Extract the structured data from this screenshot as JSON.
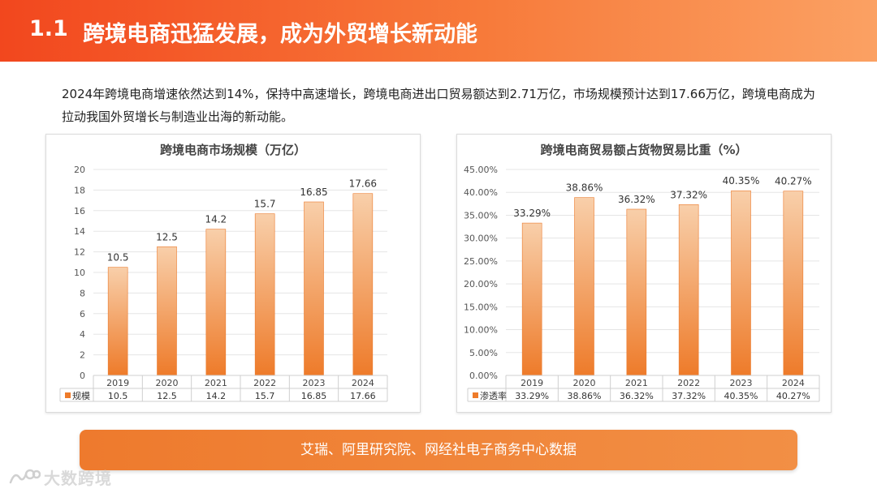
{
  "header": {
    "section_number": "1.1",
    "title": "跨境电商迅猛发展，成为外贸增长新动能"
  },
  "intro": "2024年跨境电商增速依然达到14%，保持中高速增长，跨境电商进出口贸易额达到2.71万亿，市场规模预计达到17.66万亿，跨境电商成为拉动我国外贸增长与制造业出海的新动能。",
  "source": "艾瑞、阿里研究院、网经社电子商务中心数据",
  "logo_text": "大数跨境",
  "colors": {
    "bar_top": "#f8cfaa",
    "bar_bottom": "#ee7b2a",
    "header_start": "#f2471e",
    "header_end": "#fba163"
  },
  "chart_data": [
    {
      "type": "bar",
      "title": "跨境电商市场规模（万亿）",
      "categories": [
        "2019",
        "2020",
        "2021",
        "2022",
        "2023",
        "2024"
      ],
      "series": [
        {
          "name": "规模",
          "values": [
            10.5,
            12.5,
            14.2,
            15.7,
            16.85,
            17.66
          ]
        }
      ],
      "data_labels": [
        "10.5",
        "12.5",
        "14.2",
        "15.7",
        "16.85",
        "17.66"
      ],
      "table_values": [
        "10.5",
        "12.5",
        "14.2",
        "15.7",
        "16.85",
        "17.66"
      ],
      "yticks": [
        "0",
        "2",
        "4",
        "6",
        "8",
        "10",
        "12",
        "14",
        "16",
        "18",
        "20"
      ],
      "ylim": [
        0,
        20
      ],
      "xlabel": "",
      "ylabel": "",
      "grid": true
    },
    {
      "type": "bar",
      "title": "跨境电商贸易额占货物贸易比重（%）",
      "categories": [
        "2019",
        "2020",
        "2021",
        "2022",
        "2023",
        "2024"
      ],
      "series": [
        {
          "name": "渗透率",
          "values": [
            33.29,
            38.86,
            36.32,
            37.32,
            40.35,
            40.27
          ]
        }
      ],
      "data_labels": [
        "33.29%",
        "38.86%",
        "36.32%",
        "37.32%",
        "40.35%",
        "40.27%"
      ],
      "table_values": [
        "33.29%",
        "38.86%",
        "36.32%",
        "37.32%",
        "40.35%",
        "40.27%"
      ],
      "yticks": [
        "0.00%",
        "5.00%",
        "10.00%",
        "15.00%",
        "20.00%",
        "25.00%",
        "30.00%",
        "35.00%",
        "40.00%",
        "45.00%"
      ],
      "ylim": [
        0,
        45
      ],
      "xlabel": "",
      "ylabel": "",
      "grid": true
    }
  ]
}
